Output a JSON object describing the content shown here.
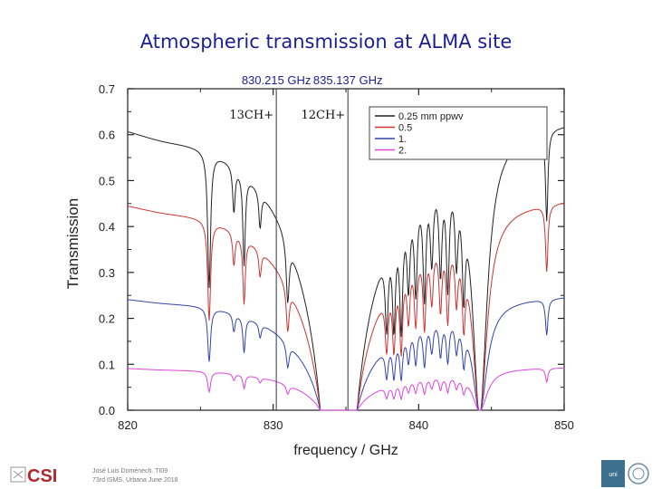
{
  "slide": {
    "title": "Atmospheric transmission at ALMA site"
  },
  "chart_data": {
    "type": "line",
    "title": "",
    "xlabel": "frequency / GHz",
    "ylabel": "Transmission",
    "xlim": [
      820,
      850
    ],
    "ylim": [
      0,
      0.7
    ],
    "xticks": [
      820,
      830,
      840,
      850
    ],
    "yticks": [
      0.0,
      0.1,
      0.2,
      0.3,
      0.4,
      0.5,
      0.6,
      0.7
    ],
    "grid": false,
    "legend_position": "top-right",
    "markers": [
      {
        "x": 830.215,
        "top_label": "830.215 GHz",
        "species": "13CH+"
      },
      {
        "x": 835.137,
        "top_label": "835.137 GHz",
        "species": "12CH+"
      }
    ],
    "series": [
      {
        "name": "0.25 mm ppwv",
        "color": "#222222",
        "offset": 0.655
      },
      {
        "name": "0.5",
        "color": "#cc3333",
        "offset": 0.48
      },
      {
        "name": "1.",
        "color": "#3344aa",
        "offset": 0.26
      },
      {
        "name": "2.",
        "color": "#dd44dd",
        "offset": 0.098
      }
    ]
  },
  "footer": {
    "line1": "José Luis Doménech. TI09",
    "line2": "73rd ISMS, Urbana June 2018",
    "logo_left": "CSI",
    "logo_right": "uni"
  }
}
